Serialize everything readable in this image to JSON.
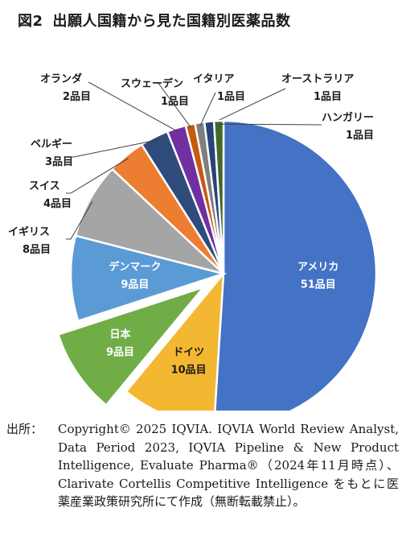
{
  "title": {
    "figure_no": "図2",
    "text": "出願人国籍から見た国籍別医薬品数"
  },
  "chart_data": {
    "type": "pie",
    "title": "図2　出願人国籍から見た国籍別医薬品数",
    "unit": "品目",
    "slices": [
      {
        "name": "アメリカ",
        "value": 51,
        "value_label": "51品目",
        "color": "#4472c4"
      },
      {
        "name": "ドイツ",
        "value": 10,
        "value_label": "10品目",
        "color": "#f4b731"
      },
      {
        "name": "日本",
        "value": 9,
        "value_label": "9品目",
        "color": "#70ad47",
        "exploded": true
      },
      {
        "name": "デンマーク",
        "value": 9,
        "value_label": "9品目",
        "color": "#5b9bd5"
      },
      {
        "name": "イギリス",
        "value": 8,
        "value_label": "8品目",
        "color": "#a5a5a5"
      },
      {
        "name": "スイス",
        "value": 4,
        "value_label": "4品目",
        "color": "#ed7d31"
      },
      {
        "name": "ベルギー",
        "value": 3,
        "value_label": "3品目",
        "color": "#2f4b7c"
      },
      {
        "name": "オランダ",
        "value": 2,
        "value_label": "2品目",
        "color": "#7030a0"
      },
      {
        "name": "スウェーデン",
        "value": 1,
        "value_label": "1品目",
        "color": "#c55a11"
      },
      {
        "name": "イタリア",
        "value": 1,
        "value_label": "1品目",
        "color": "#7f7f7f"
      },
      {
        "name": "オーストラリア",
        "value": 1,
        "value_label": "1品目",
        "color": "#264478"
      },
      {
        "name": "ハンガリー",
        "value": 1,
        "value_label": "1品目",
        "color": "#43682b"
      }
    ]
  },
  "source": {
    "lead": "出所：",
    "text": "Copyright© 2025 IQVIA. IQVIA World Review Analyst, Data Period 2023, IQVIA Pipeline & New Product Intelligence, Evaluate Pharma®（2024年11月時点）、Clarivate Cortellis Competitive Intelligence をもとに医薬産業政策研究所にて作成（無断転載禁止）。"
  }
}
